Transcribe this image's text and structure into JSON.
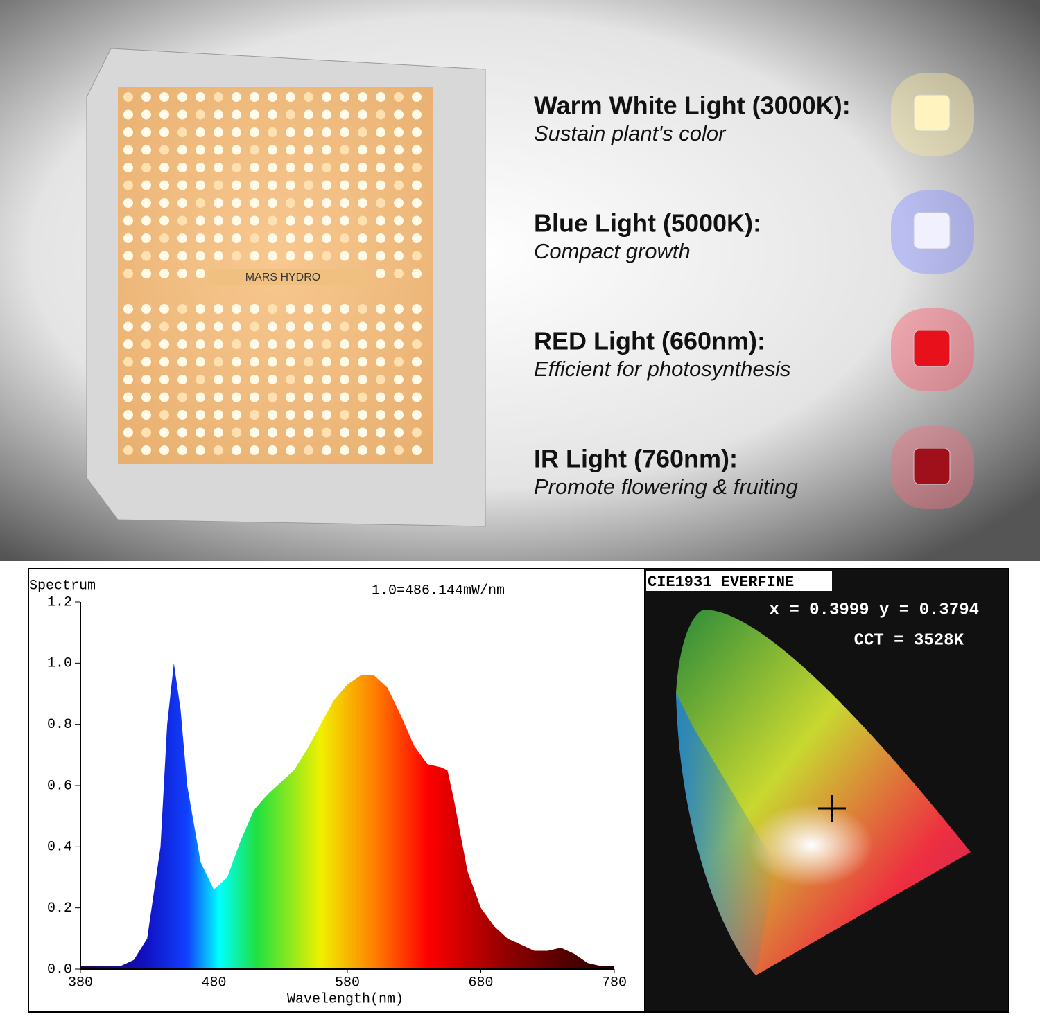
{
  "brand": "MARS HYDRO",
  "features": [
    {
      "title": "Warm White Light (3000K):",
      "subtitle": "Sustain plant's color",
      "color": "#fff3c0",
      "glow": "#f5e6a0"
    },
    {
      "title": "Blue Light (5000K):",
      "subtitle": "Compact growth",
      "color": "#f0f0ff",
      "glow": "#8890ff"
    },
    {
      "title": "RED Light (660nm):",
      "subtitle": "Efficient for photosynthesis",
      "color": "#e8101a",
      "glow": "#ff6070"
    },
    {
      "title": "IR Light (760nm):",
      "subtitle": "Promote flowering & fruiting",
      "color": "#a0101a",
      "glow": "#f07080"
    }
  ],
  "chart_data": {
    "type": "area",
    "title": "Spectrum",
    "annotation": "1.0=486.144mW/nm",
    "x_label": "Wavelength(nm)",
    "x": [
      380,
      390,
      400,
      410,
      420,
      430,
      440,
      445,
      450,
      455,
      460,
      470,
      480,
      490,
      500,
      510,
      520,
      530,
      540,
      550,
      560,
      570,
      580,
      590,
      600,
      610,
      620,
      630,
      640,
      650,
      655,
      660,
      670,
      680,
      690,
      700,
      710,
      720,
      730,
      740,
      750,
      760,
      770,
      780
    ],
    "values": [
      0.01,
      0.01,
      0.01,
      0.01,
      0.03,
      0.1,
      0.4,
      0.8,
      1.0,
      0.85,
      0.6,
      0.35,
      0.26,
      0.3,
      0.42,
      0.52,
      0.57,
      0.61,
      0.65,
      0.72,
      0.8,
      0.88,
      0.93,
      0.96,
      0.96,
      0.92,
      0.83,
      0.73,
      0.67,
      0.66,
      0.65,
      0.55,
      0.32,
      0.2,
      0.14,
      0.1,
      0.08,
      0.06,
      0.06,
      0.07,
      0.05,
      0.02,
      0.01,
      0.01
    ],
    "xlim": [
      380,
      780
    ],
    "xticks": [
      380,
      480,
      580,
      680,
      780
    ],
    "ylim": [
      0,
      1.2
    ],
    "yticks": [
      {
        "value": 0,
        "label": "0.0"
      },
      0.2,
      0.4,
      0.6,
      0.8,
      {
        "value": 1,
        "label": "1.0"
      },
      1.2
    ]
  },
  "cie": {
    "title": "CIE1931 EVERFINE",
    "coordinates": "x = 0.3999 y = 0.3794",
    "cct": "CCT = 3528K"
  }
}
